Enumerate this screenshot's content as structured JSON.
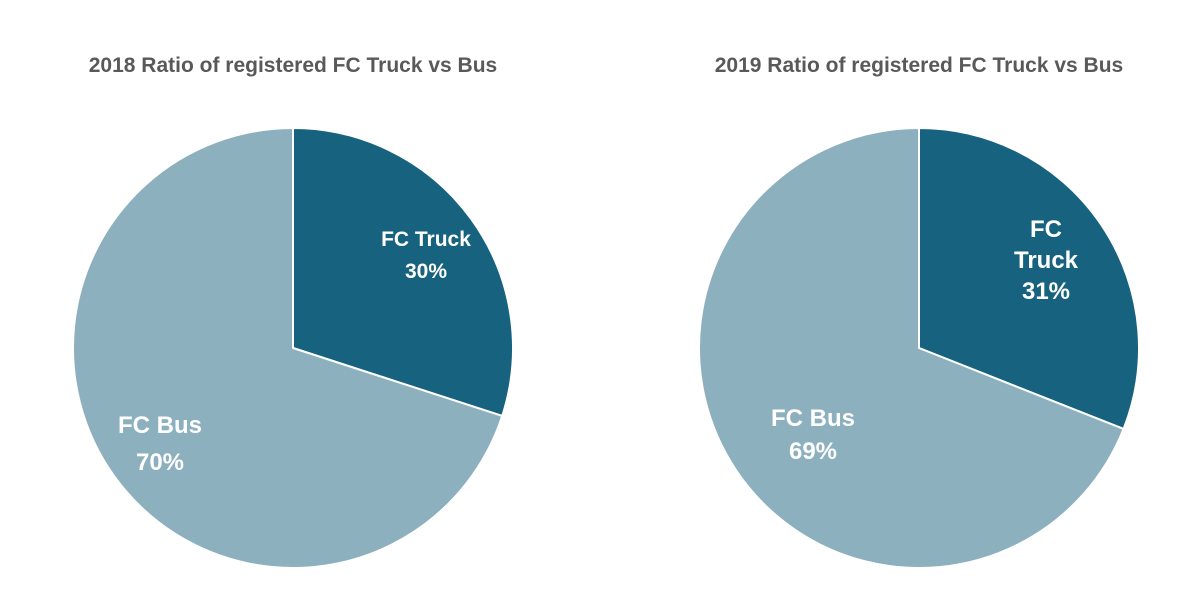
{
  "chart_data": [
    {
      "type": "pie",
      "title": "2018 Ratio of registered FC Truck vs Bus",
      "slices": [
        {
          "label_lines": [
            "FC Truck"
          ],
          "label": "FC Truck",
          "percent_text": "30%",
          "value": 30,
          "color": "#17627F"
        },
        {
          "label_lines": [
            "FC Bus"
          ],
          "label": "FC Bus",
          "percent_text": "70%",
          "value": 70,
          "color": "#8DB0BE"
        }
      ],
      "start_angle_deg": 0,
      "direction": "clockwise",
      "legend": "none"
    },
    {
      "type": "pie",
      "title": "2019 Ratio of registered  FC Truck vs Bus",
      "slices": [
        {
          "label_lines": [
            "FC",
            "Truck"
          ],
          "label": "FC Truck",
          "percent_text": "31%",
          "value": 31,
          "color": "#17627F"
        },
        {
          "label_lines": [
            "FC Bus"
          ],
          "label": "FC Bus",
          "percent_text": "69%",
          "value": 69,
          "color": "#8DB0BE"
        }
      ],
      "start_angle_deg": 0,
      "direction": "clockwise",
      "legend": "none"
    }
  ],
  "colors": {
    "truck": "#17627F",
    "bus": "#8DB0BE",
    "title": "#595959",
    "label": "#ffffff",
    "separator": "#ffffff"
  }
}
